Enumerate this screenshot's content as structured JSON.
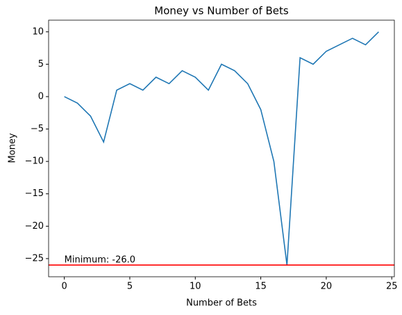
{
  "chart_data": {
    "type": "line",
    "title": "Money vs Number of Bets",
    "x_label": "Number of Bets",
    "y_label": "Money",
    "x": [
      0,
      1,
      2,
      3,
      4,
      5,
      6,
      7,
      8,
      9,
      10,
      11,
      12,
      13,
      14,
      15,
      16,
      17,
      18,
      19,
      20,
      21,
      22,
      23,
      24
    ],
    "values": [
      0,
      -1,
      -3,
      -7,
      1,
      2,
      1,
      3,
      2,
      4,
      3,
      1,
      5,
      4,
      2,
      -2,
      -10,
      -26,
      6,
      5,
      7,
      8,
      9,
      8,
      10
    ],
    "color": "#1f77b4",
    "xlim": [
      -1.2,
      25.2
    ],
    "xticks": [
      0,
      5,
      10,
      15,
      20,
      25
    ],
    "ylim": [
      -27.8,
      11.8
    ],
    "yticks": [
      {
        "value": -25,
        "label": "−25"
      },
      {
        "value": -20,
        "label": "−20"
      },
      {
        "value": -15,
        "label": "−15"
      },
      {
        "value": -10,
        "label": "−10"
      },
      {
        "value": -5,
        "label": "−5"
      },
      0,
      5,
      10
    ],
    "hline": {
      "value": -26,
      "color": "#ff0000",
      "label": "Minimum: -26.0"
    }
  }
}
